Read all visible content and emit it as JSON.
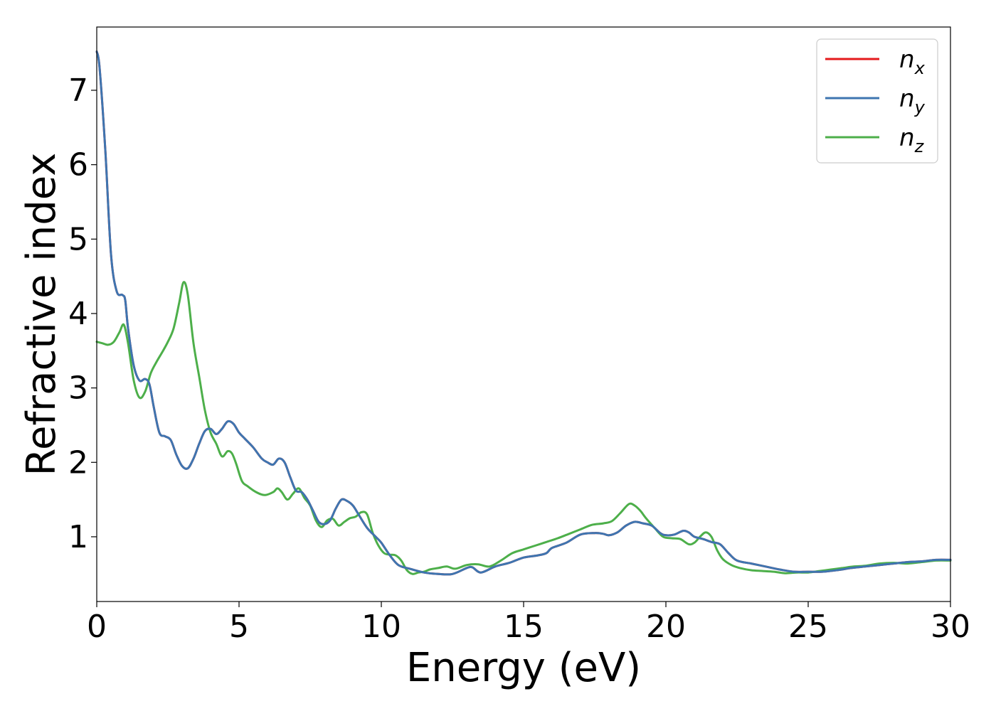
{
  "chart_data": {
    "type": "line",
    "title": "",
    "xlabel": "Energy (eV)",
    "ylabel": "Refractive index",
    "xlim": [
      0,
      30
    ],
    "ylim": [
      0.13,
      7.85
    ],
    "xticks": [
      0,
      5,
      10,
      15,
      20,
      25,
      30
    ],
    "xtick_labels": [
      "0",
      "5",
      "10",
      "15",
      "20",
      "25",
      "30"
    ],
    "yticks": [
      1,
      2,
      3,
      4,
      5,
      6,
      7
    ],
    "ytick_labels": [
      "1",
      "2",
      "3",
      "4",
      "5",
      "6",
      "7"
    ],
    "grid": false,
    "legend_position": "top-right",
    "series": [
      {
        "name": "n_x",
        "label_base": "n",
        "label_sub": "x",
        "color": "#e41a1c",
        "x": [
          0,
          0.1,
          0.3,
          0.5,
          0.7,
          0.9,
          1.0,
          1.1,
          1.3,
          1.5,
          1.7,
          1.85,
          2.0,
          2.2,
          2.4,
          2.6,
          2.8,
          3.0,
          3.2,
          3.4,
          3.6,
          3.8,
          4.0,
          4.2,
          4.4,
          4.6,
          4.8,
          5.0,
          5.2,
          5.5,
          5.8,
          6.0,
          6.2,
          6.4,
          6.6,
          6.8,
          7.0,
          7.2,
          7.4,
          7.6,
          7.8,
          8.0,
          8.2,
          8.4,
          8.6,
          8.8,
          9.0,
          9.2,
          9.5,
          9.8,
          10.0,
          10.3,
          10.6,
          11.0,
          11.5,
          12.0,
          12.5,
          13.0,
          13.2,
          13.5,
          14.0,
          14.5,
          15.0,
          15.5,
          15.8,
          16.0,
          16.5,
          17.0,
          17.5,
          17.8,
          18.0,
          18.3,
          18.6,
          18.9,
          19.2,
          19.5,
          19.8,
          20.0,
          20.3,
          20.6,
          20.8,
          21.0,
          21.3,
          21.6,
          21.9,
          22.2,
          22.5,
          23.0,
          23.5,
          24.0,
          24.5,
          25.0,
          25.5,
          26.0,
          26.5,
          27.0,
          27.5,
          28.0,
          28.5,
          29.0,
          29.5,
          30.0
        ],
        "y": [
          7.52,
          7.3,
          6.2,
          4.8,
          4.3,
          4.25,
          4.18,
          3.8,
          3.3,
          3.1,
          3.12,
          3.05,
          2.75,
          2.4,
          2.35,
          2.3,
          2.1,
          1.95,
          1.92,
          2.05,
          2.25,
          2.42,
          2.45,
          2.38,
          2.45,
          2.55,
          2.52,
          2.4,
          2.32,
          2.2,
          2.05,
          2.0,
          1.97,
          2.05,
          2.0,
          1.8,
          1.62,
          1.6,
          1.5,
          1.35,
          1.2,
          1.17,
          1.22,
          1.38,
          1.5,
          1.48,
          1.42,
          1.3,
          1.12,
          1.0,
          0.92,
          0.75,
          0.62,
          0.57,
          0.52,
          0.5,
          0.5,
          0.58,
          0.59,
          0.52,
          0.6,
          0.65,
          0.72,
          0.75,
          0.78,
          0.85,
          0.92,
          1.03,
          1.05,
          1.04,
          1.02,
          1.06,
          1.15,
          1.2,
          1.18,
          1.15,
          1.05,
          1.02,
          1.03,
          1.08,
          1.06,
          1.0,
          0.97,
          0.93,
          0.9,
          0.78,
          0.68,
          0.64,
          0.6,
          0.56,
          0.53,
          0.53,
          0.53,
          0.55,
          0.58,
          0.6,
          0.62,
          0.64,
          0.66,
          0.67,
          0.69,
          0.69
        ]
      },
      {
        "name": "n_y",
        "label_base": "n",
        "label_sub": "y",
        "color": "#3e75b0",
        "x": [
          0,
          0.1,
          0.3,
          0.5,
          0.7,
          0.9,
          1.0,
          1.1,
          1.3,
          1.5,
          1.7,
          1.85,
          2.0,
          2.2,
          2.4,
          2.6,
          2.8,
          3.0,
          3.2,
          3.4,
          3.6,
          3.8,
          4.0,
          4.2,
          4.4,
          4.6,
          4.8,
          5.0,
          5.2,
          5.5,
          5.8,
          6.0,
          6.2,
          6.4,
          6.6,
          6.8,
          7.0,
          7.2,
          7.4,
          7.6,
          7.8,
          8.0,
          8.2,
          8.4,
          8.6,
          8.8,
          9.0,
          9.2,
          9.5,
          9.8,
          10.0,
          10.3,
          10.6,
          11.0,
          11.5,
          12.0,
          12.5,
          13.0,
          13.2,
          13.5,
          14.0,
          14.5,
          15.0,
          15.5,
          15.8,
          16.0,
          16.5,
          17.0,
          17.5,
          17.8,
          18.0,
          18.3,
          18.6,
          18.9,
          19.2,
          19.5,
          19.8,
          20.0,
          20.3,
          20.6,
          20.8,
          21.0,
          21.3,
          21.6,
          21.9,
          22.2,
          22.5,
          23.0,
          23.5,
          24.0,
          24.5,
          25.0,
          25.5,
          26.0,
          26.5,
          27.0,
          27.5,
          28.0,
          28.5,
          29.0,
          29.5,
          30.0
        ],
        "y": [
          7.52,
          7.3,
          6.2,
          4.8,
          4.3,
          4.25,
          4.18,
          3.8,
          3.3,
          3.1,
          3.12,
          3.05,
          2.75,
          2.4,
          2.35,
          2.3,
          2.1,
          1.95,
          1.92,
          2.05,
          2.25,
          2.42,
          2.45,
          2.38,
          2.45,
          2.55,
          2.52,
          2.4,
          2.32,
          2.2,
          2.05,
          2.0,
          1.97,
          2.05,
          2.0,
          1.8,
          1.62,
          1.6,
          1.5,
          1.35,
          1.2,
          1.17,
          1.22,
          1.38,
          1.5,
          1.48,
          1.42,
          1.3,
          1.12,
          1.0,
          0.92,
          0.75,
          0.62,
          0.57,
          0.52,
          0.5,
          0.5,
          0.58,
          0.59,
          0.52,
          0.6,
          0.65,
          0.72,
          0.75,
          0.78,
          0.85,
          0.92,
          1.03,
          1.05,
          1.04,
          1.02,
          1.06,
          1.15,
          1.2,
          1.18,
          1.15,
          1.05,
          1.02,
          1.03,
          1.08,
          1.06,
          1.0,
          0.97,
          0.93,
          0.9,
          0.78,
          0.68,
          0.64,
          0.6,
          0.56,
          0.53,
          0.53,
          0.53,
          0.55,
          0.58,
          0.6,
          0.62,
          0.64,
          0.66,
          0.67,
          0.69,
          0.69
        ]
      },
      {
        "name": "n_z",
        "label_base": "n",
        "label_sub": "z",
        "color": "#4daf4a",
        "x": [
          0,
          0.2,
          0.4,
          0.6,
          0.8,
          0.95,
          1.1,
          1.3,
          1.5,
          1.7,
          1.9,
          2.1,
          2.3,
          2.5,
          2.7,
          2.9,
          3.05,
          3.2,
          3.4,
          3.6,
          3.8,
          4.0,
          4.2,
          4.4,
          4.6,
          4.75,
          4.9,
          5.1,
          5.3,
          5.6,
          5.9,
          6.2,
          6.35,
          6.5,
          6.7,
          6.9,
          7.1,
          7.3,
          7.5,
          7.7,
          7.9,
          8.1,
          8.3,
          8.5,
          8.7,
          8.9,
          9.1,
          9.3,
          9.5,
          9.7,
          9.9,
          10.1,
          10.3,
          10.5,
          10.7,
          10.9,
          11.1,
          11.3,
          11.5,
          11.7,
          12.0,
          12.3,
          12.6,
          13.0,
          13.4,
          13.8,
          14.2,
          14.6,
          15.0,
          15.4,
          15.8,
          16.2,
          16.6,
          17.0,
          17.4,
          17.8,
          18.1,
          18.4,
          18.7,
          18.9,
          19.1,
          19.3,
          19.6,
          19.9,
          20.2,
          20.5,
          20.8,
          21.0,
          21.2,
          21.4,
          21.6,
          21.8,
          22.0,
          22.3,
          22.6,
          23.0,
          23.4,
          23.8,
          24.2,
          24.6,
          25.0,
          25.4,
          25.8,
          26.2,
          26.6,
          27.0,
          27.5,
          28.0,
          28.5,
          29.0,
          29.5,
          30.0
        ],
        "y": [
          3.62,
          3.6,
          3.58,
          3.62,
          3.75,
          3.85,
          3.6,
          3.1,
          2.87,
          2.95,
          3.2,
          3.35,
          3.48,
          3.62,
          3.8,
          4.15,
          4.42,
          4.25,
          3.6,
          3.15,
          2.7,
          2.4,
          2.25,
          2.08,
          2.15,
          2.12,
          1.98,
          1.75,
          1.68,
          1.6,
          1.56,
          1.6,
          1.65,
          1.6,
          1.5,
          1.58,
          1.65,
          1.52,
          1.42,
          1.22,
          1.13,
          1.22,
          1.24,
          1.15,
          1.2,
          1.25,
          1.27,
          1.33,
          1.3,
          1.05,
          0.88,
          0.78,
          0.76,
          0.75,
          0.68,
          0.55,
          0.5,
          0.52,
          0.53,
          0.56,
          0.58,
          0.6,
          0.57,
          0.62,
          0.63,
          0.6,
          0.68,
          0.78,
          0.83,
          0.88,
          0.93,
          0.98,
          1.04,
          1.1,
          1.16,
          1.18,
          1.21,
          1.32,
          1.44,
          1.42,
          1.35,
          1.25,
          1.12,
          1.0,
          0.98,
          0.97,
          0.9,
          0.92,
          1.0,
          1.06,
          1.0,
          0.82,
          0.7,
          0.62,
          0.58,
          0.55,
          0.54,
          0.53,
          0.51,
          0.52,
          0.52,
          0.54,
          0.56,
          0.58,
          0.6,
          0.61,
          0.64,
          0.65,
          0.64,
          0.66,
          0.68,
          0.68
        ]
      }
    ]
  }
}
